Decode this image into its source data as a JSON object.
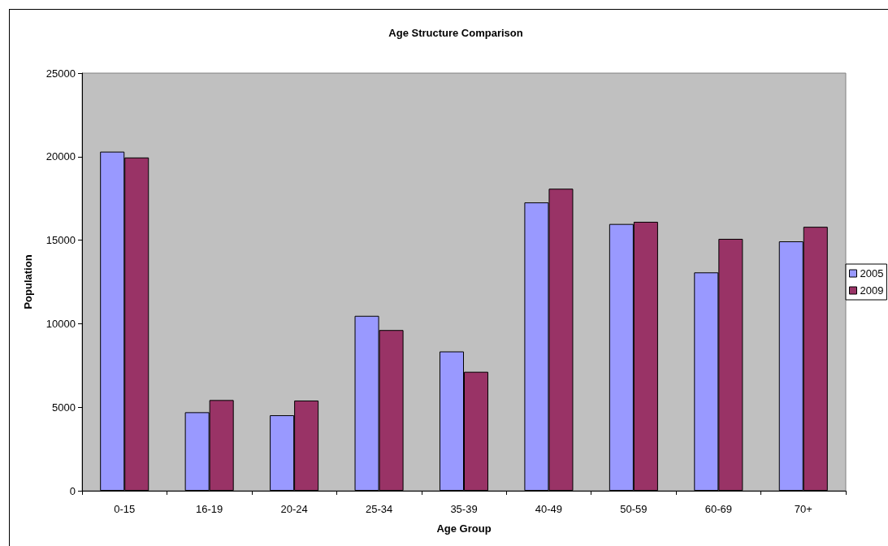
{
  "chart_data": {
    "type": "bar",
    "title": "Age Structure Comparison",
    "xlabel": "Age Group",
    "ylabel": "Population",
    "categories": [
      "0-15",
      "16-19",
      "20-24",
      "25-34",
      "35-39",
      "40-49",
      "50-59",
      "60-69",
      "70+"
    ],
    "series": [
      {
        "name": "2005",
        "color": "#9999ff",
        "values": [
          20300,
          4700,
          4520,
          10470,
          8340,
          17260,
          15970,
          13070,
          14930
        ]
      },
      {
        "name": "2009",
        "color": "#993366",
        "values": [
          19950,
          5430,
          5400,
          9620,
          7120,
          18080,
          16100,
          15080,
          15800
        ]
      }
    ],
    "ylim": [
      0,
      25000
    ],
    "yticks": [
      0,
      5000,
      10000,
      15000,
      20000,
      25000
    ],
    "grid": false,
    "legend": "right"
  }
}
